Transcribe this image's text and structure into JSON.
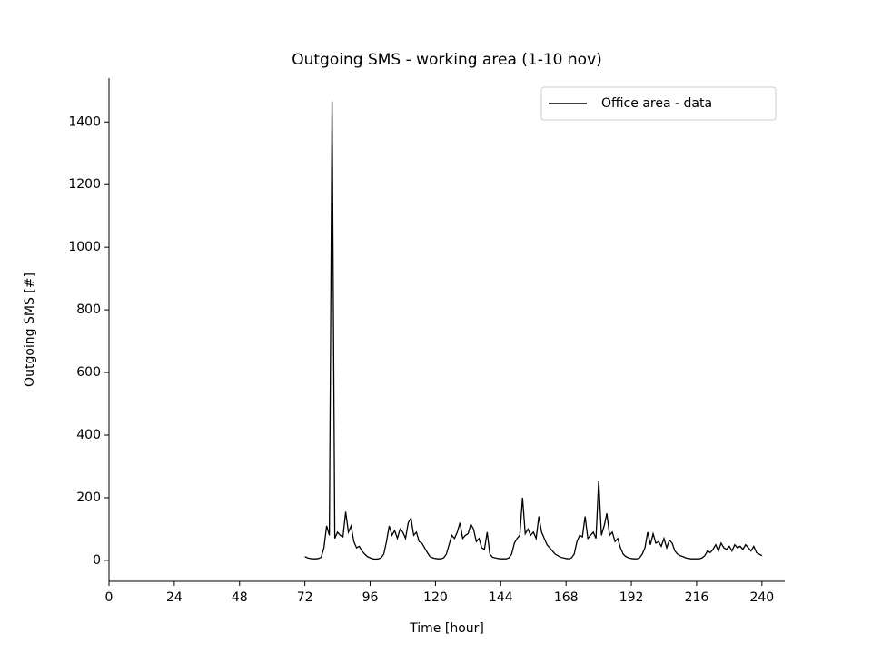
{
  "chart_data": {
    "type": "line",
    "title": "Outgoing SMS - working area (1-10 nov)",
    "x_label": "Time [hour]",
    "y_label": "Outgoing SMS [#]",
    "legend": "upper right",
    "xlim": [
      0,
      248.4
    ],
    "ylim": [
      -67,
      1540
    ],
    "xticks": [
      0,
      24,
      48,
      72,
      96,
      120,
      144,
      168,
      192,
      216,
      240
    ],
    "yticks": [
      0,
      200,
      400,
      600,
      800,
      1000,
      1200,
      1400
    ],
    "x": [
      72,
      73,
      74,
      75,
      76,
      77,
      78,
      79,
      80,
      81,
      82,
      83,
      84,
      85,
      86,
      87,
      88,
      89,
      90,
      91,
      92,
      93,
      94,
      95,
      96,
      97,
      98,
      99,
      100,
      101,
      102,
      103,
      104,
      105,
      106,
      107,
      108,
      109,
      110,
      111,
      112,
      113,
      114,
      115,
      116,
      117,
      118,
      119,
      120,
      121,
      122,
      123,
      124,
      125,
      126,
      127,
      128,
      129,
      130,
      131,
      132,
      133,
      134,
      135,
      136,
      137,
      138,
      139,
      140,
      141,
      142,
      143,
      144,
      145,
      146,
      147,
      148,
      149,
      150,
      151,
      152,
      153,
      154,
      155,
      156,
      157,
      158,
      159,
      160,
      161,
      162,
      163,
      164,
      165,
      166,
      167,
      168,
      169,
      170,
      171,
      172,
      173,
      174,
      175,
      176,
      177,
      178,
      179,
      180,
      181,
      182,
      183,
      184,
      185,
      186,
      187,
      188,
      189,
      190,
      191,
      192,
      193,
      194,
      195,
      196,
      197,
      198,
      199,
      200,
      201,
      202,
      203,
      204,
      205,
      206,
      207,
      208,
      209,
      210,
      211,
      212,
      213,
      214,
      215,
      216,
      217,
      218,
      219,
      220,
      221,
      222,
      223,
      224,
      225,
      226,
      227,
      228,
      229,
      230,
      231,
      232,
      233,
      234,
      235,
      236,
      237,
      238,
      239,
      240
    ],
    "series": [
      {
        "name": "Office area - data",
        "color": "#000000",
        "values": [
          12,
          8,
          6,
          5,
          5,
          6,
          10,
          40,
          110,
          80,
          1465,
          70,
          90,
          80,
          75,
          155,
          90,
          110,
          60,
          40,
          45,
          30,
          20,
          12,
          8,
          5,
          4,
          5,
          8,
          20,
          60,
          110,
          80,
          95,
          70,
          100,
          90,
          70,
          120,
          135,
          80,
          90,
          60,
          55,
          40,
          25,
          12,
          8,
          6,
          5,
          5,
          8,
          20,
          50,
          80,
          70,
          90,
          120,
          70,
          80,
          85,
          115,
          100,
          60,
          70,
          40,
          35,
          90,
          20,
          10,
          8,
          6,
          5,
          5,
          5,
          8,
          20,
          55,
          70,
          80,
          200,
          85,
          100,
          80,
          90,
          70,
          140,
          90,
          70,
          50,
          40,
          30,
          20,
          15,
          10,
          8,
          6,
          5,
          8,
          20,
          60,
          80,
          75,
          140,
          70,
          80,
          90,
          70,
          255,
          80,
          110,
          150,
          80,
          90,
          60,
          70,
          40,
          20,
          12,
          8,
          6,
          5,
          5,
          8,
          20,
          40,
          90,
          50,
          85,
          55,
          60,
          45,
          70,
          40,
          65,
          55,
          30,
          20,
          15,
          12,
          8,
          6,
          5,
          5,
          5,
          5,
          8,
          15,
          30,
          25,
          35,
          50,
          30,
          55,
          40,
          35,
          45,
          30,
          50,
          40,
          45,
          35,
          50,
          40,
          30,
          45,
          25,
          20,
          15
        ]
      }
    ]
  }
}
